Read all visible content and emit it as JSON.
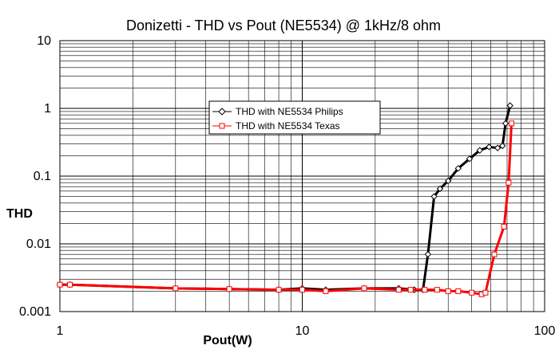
{
  "chart_data": {
    "type": "line",
    "title": "Donizetti - THD vs Pout (NE5534) @ 1kHz/8 ohm",
    "xlabel": "Pout(W)",
    "ylabel": "THD",
    "xscale": "log",
    "yscale": "log",
    "xlim": [
      1,
      100
    ],
    "ylim": [
      0.001,
      10
    ],
    "x_ticks": [
      "1",
      "10",
      "100"
    ],
    "y_ticks": [
      "0.001",
      "0.01",
      "0.1",
      "1",
      "10"
    ],
    "grid": true,
    "legend_position": "center",
    "series": [
      {
        "name": "THD with NE5534 Philips",
        "color": "#000000",
        "marker": "diamond",
        "points": [
          [
            1.0,
            0.0025
          ],
          [
            1.1,
            0.0025
          ],
          [
            3.0,
            0.0022
          ],
          [
            5.0,
            0.00215
          ],
          [
            8.0,
            0.0021
          ],
          [
            10.0,
            0.0022
          ],
          [
            12.5,
            0.0021
          ],
          [
            18.0,
            0.0022
          ],
          [
            25.0,
            0.0022
          ],
          [
            29.0,
            0.0021
          ],
          [
            31.5,
            0.0021
          ],
          [
            33.0,
            0.007
          ],
          [
            35.0,
            0.05
          ],
          [
            37.0,
            0.065
          ],
          [
            40.0,
            0.085
          ],
          [
            44.0,
            0.13
          ],
          [
            49.0,
            0.18
          ],
          [
            54.0,
            0.24
          ],
          [
            59.0,
            0.27
          ],
          [
            64.0,
            0.26
          ],
          [
            67.0,
            0.28
          ],
          [
            69.0,
            0.6
          ],
          [
            72.0,
            1.1
          ]
        ]
      },
      {
        "name": "THD with NE5534 Texas",
        "color": "#ff0000",
        "marker": "square",
        "points": [
          [
            1.0,
            0.0025
          ],
          [
            1.1,
            0.0025
          ],
          [
            3.0,
            0.0022
          ],
          [
            5.0,
            0.00215
          ],
          [
            8.0,
            0.0021
          ],
          [
            10.0,
            0.0021
          ],
          [
            12.5,
            0.002
          ],
          [
            18.0,
            0.0022
          ],
          [
            25.0,
            0.0021
          ],
          [
            28.0,
            0.0021
          ],
          [
            32.0,
            0.0021
          ],
          [
            36.0,
            0.0021
          ],
          [
            40.0,
            0.002
          ],
          [
            44.0,
            0.002
          ],
          [
            50.0,
            0.0019
          ],
          [
            55.0,
            0.0018
          ],
          [
            57.0,
            0.0019
          ],
          [
            62.0,
            0.007
          ],
          [
            68.0,
            0.018
          ],
          [
            71.0,
            0.08
          ],
          [
            73.0,
            0.6
          ]
        ]
      }
    ]
  }
}
